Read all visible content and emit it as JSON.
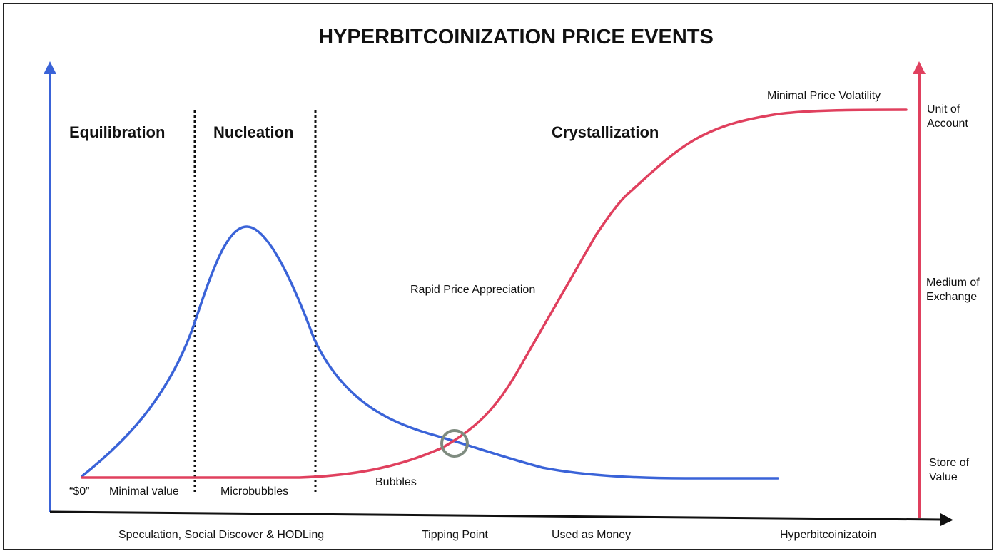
{
  "title": "HYPERBITCOINIZATION PRICE EVENTS",
  "phases": [
    "Equilibration",
    "Nucleation",
    "Crystallization"
  ],
  "annotations": {
    "minimal_price_volatility": "Minimal Price Volatility",
    "rapid_price_appreciation": "Rapid Price Appreciation",
    "bubbles": "Bubbles",
    "zero": "“$0”",
    "minimal_value": "Minimal value",
    "microbubbles": "Microbubbles"
  },
  "x_axis_labels": [
    "Speculation, Social Discover & HODLing",
    "Tipping Point",
    "Used as Money",
    "Hyperbitcoinizatoin"
  ],
  "right_axis_labels": {
    "unit_of_account": [
      "Unit of",
      "Account"
    ],
    "medium_of_exchange": [
      "Medium of",
      "Exchange"
    ],
    "store_of_value": [
      "Store of",
      "Value"
    ]
  },
  "colors": {
    "blue_curve": "#3a63d8",
    "red_curve": "#e0405e",
    "axis": "#111111",
    "tipping_circle": "#7f8c80"
  }
}
